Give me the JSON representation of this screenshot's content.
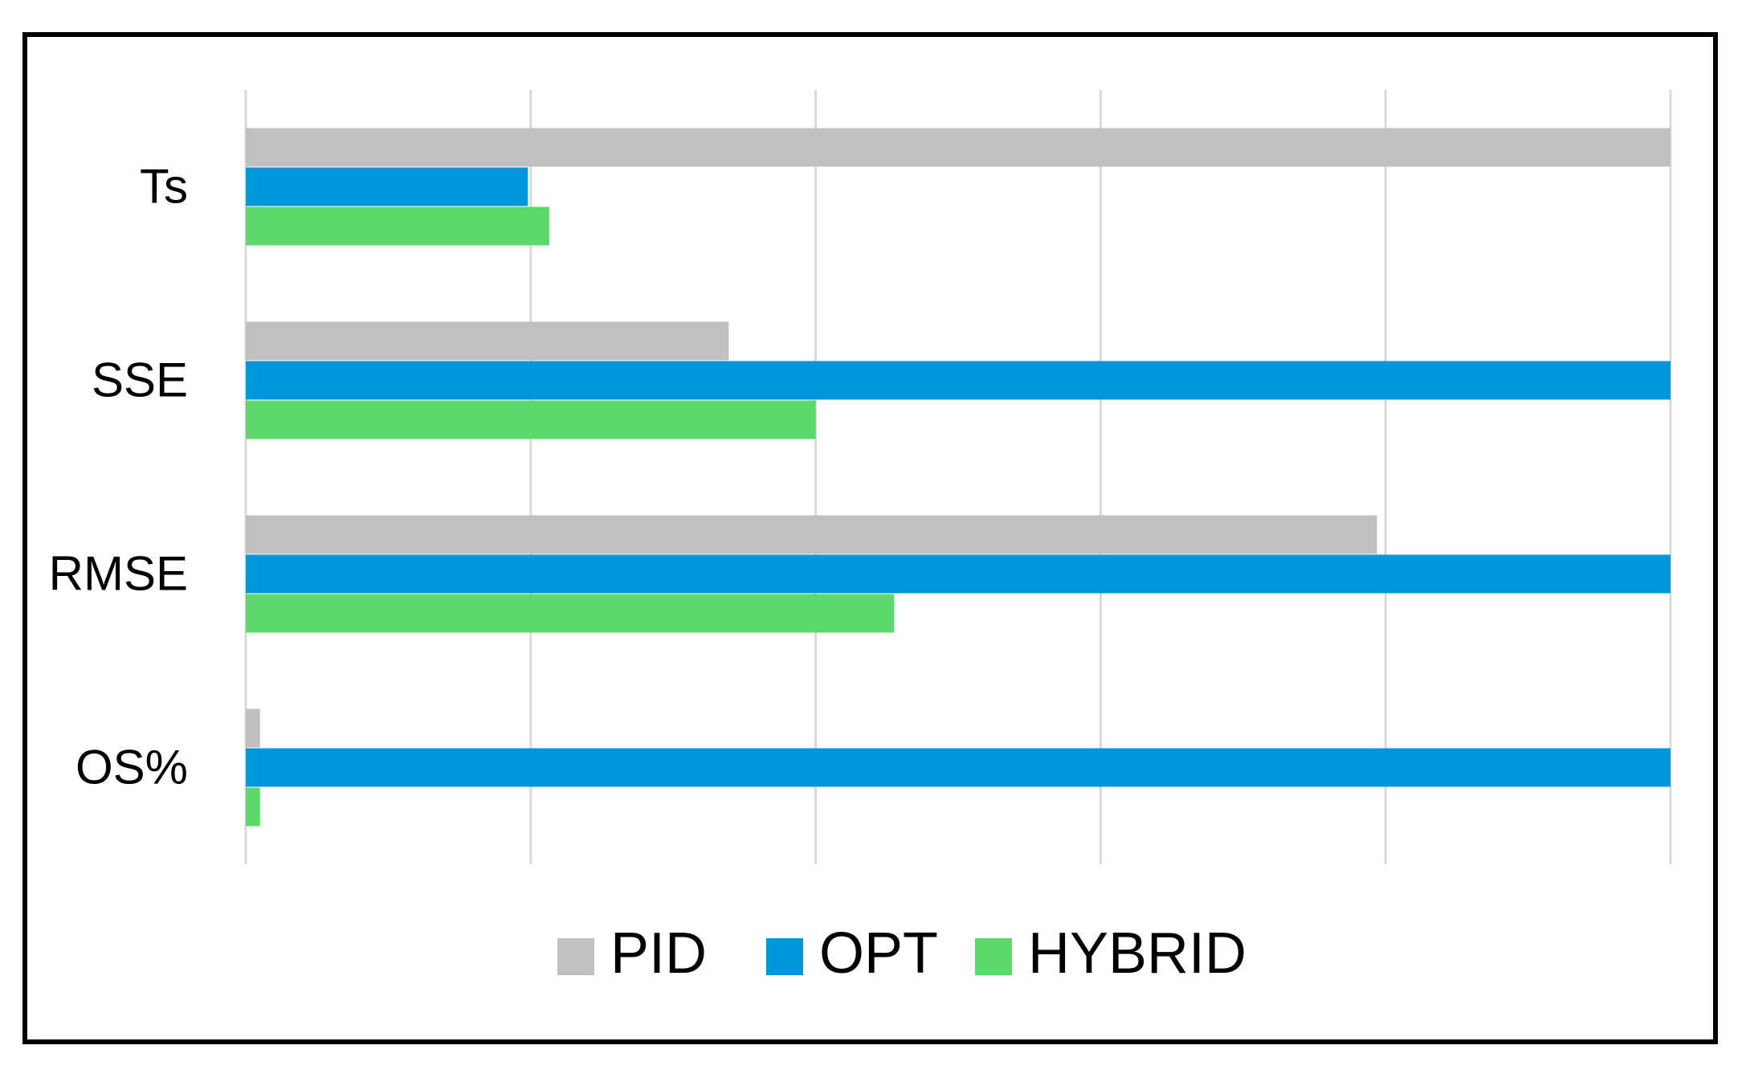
{
  "chart_data": {
    "type": "bar",
    "orientation": "horizontal",
    "categories": [
      "Ts",
      "SSE",
      "RMSE",
      "OS%"
    ],
    "series": [
      {
        "name": "PID",
        "color": "#c0c0c0",
        "values": [
          1.0,
          0.339,
          0.794,
          0.01
        ]
      },
      {
        "name": "OPT",
        "color": "#0096dc",
        "values": [
          0.198,
          1.0,
          1.0,
          1.0
        ]
      },
      {
        "name": "HYBRID",
        "color": "#5cd96b",
        "values": [
          0.213,
          0.4,
          0.455,
          0.01
        ]
      }
    ],
    "xlim": [
      0,
      1
    ],
    "grid": true,
    "legend_position": "bottom"
  }
}
